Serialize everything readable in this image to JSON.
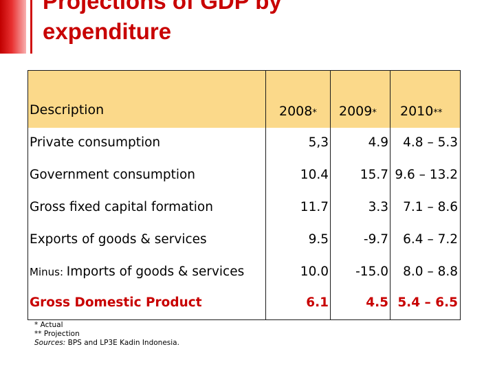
{
  "title_line1": "Projections of GDP by",
  "title_line2": "expenditure",
  "colors": {
    "accent": "#c80000",
    "header_bg": "#fbd98a"
  },
  "table": {
    "headers": {
      "description": "Description",
      "y2008": "2008",
      "y2008_mark": "*",
      "y2009": "2009",
      "y2009_mark": "*",
      "y2010": "2010",
      "y2010_mark": "**"
    },
    "rows": [
      {
        "prefix": "",
        "label": "Private consumption",
        "v2008": "5,3",
        "v2009": "4.9",
        "v2010": "4.8 – 5.3"
      },
      {
        "prefix": "",
        "label": "Government consumption",
        "v2008": "10.4",
        "v2009": "15.7",
        "v2010": "9.6 – 13.2"
      },
      {
        "prefix": "",
        "label": "Gross fixed capital formation",
        "v2008": "11.7",
        "v2009": "3.3",
        "v2010": "7.1 – 8.6"
      },
      {
        "prefix": "",
        "label": "Exports of goods & services",
        "v2008": "9.5",
        "v2009": "-9.7",
        "v2010": "6.4 – 7.2"
      },
      {
        "prefix": "Minus: ",
        "label": "Imports of goods & services",
        "v2008": "10.0",
        "v2009": "-15.0",
        "v2010": "8.0 – 8.8"
      },
      {
        "prefix": "",
        "label": "Gross Domestic Product",
        "v2008": "6.1",
        "v2009": "4.5",
        "v2010": "5.4 – 6.5"
      }
    ]
  },
  "footnotes": {
    "actual": "* Actual",
    "projection": "** Projection",
    "sources_label": "Sources:",
    "sources_text": " BPS and LP3E Kadin Indonesia."
  }
}
